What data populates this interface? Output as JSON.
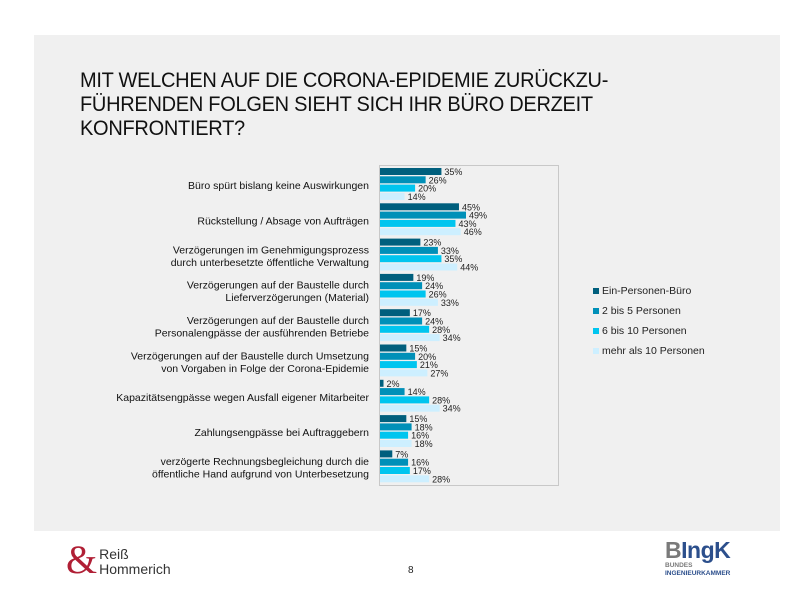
{
  "slide": {
    "title": "MIT WELCHEN AUF DIE CORONA-EPIDEMIE ZURÜCKZU-\nFÜHRENDEN FOLGEN SIEHT SICH IHR BÜRO DERZEIT\nKONFRONTIERT?",
    "page_number": "8"
  },
  "logos": {
    "left_amp": "&",
    "left_line1": "Reiß",
    "left_line2": "Hommerich",
    "right_main_b": "B",
    "right_main_rest": "IngK",
    "right_sub1": "BUNDES",
    "right_sub2": "INGENIEURKAMMER"
  },
  "chart_data": {
    "type": "bar",
    "orientation": "horizontal",
    "title": "MIT WELCHEN AUF DIE CORONA-EPIDEMIE ZURÜCKZUFÜHRENDEN FOLGEN SIEHT SICH IHR BÜRO DERZEIT KONFRONTIERT?",
    "xlabel": "",
    "ylabel": "",
    "xlim": [
      0,
      100
    ],
    "grid": false,
    "legend_position": "right",
    "value_suffix": "%",
    "categories": [
      [
        "Büro spürt bislang keine Auswirkungen"
      ],
      [
        "Rückstellung / Absage von Aufträgen"
      ],
      [
        "Verzögerungen im Genehmigungsprozess",
        "durch unterbesetzte öffentliche Verwaltung"
      ],
      [
        "Verzögerungen auf der Baustelle durch",
        "Lieferverzögerungen (Material)"
      ],
      [
        "Verzögerungen auf der Baustelle durch",
        "Personalengpässe der ausführenden Betriebe"
      ],
      [
        "Verzögerungen auf der Baustelle durch Umsetzung",
        "von Vorgaben in Folge der Corona-Epidemie"
      ],
      [
        "Kapazitätsengpässe wegen Ausfall eigener Mitarbeiter"
      ],
      [
        "Zahlungsengpässe bei Auftraggebern"
      ],
      [
        "verzögerte Rechnungsbegleichung durch die",
        "öffentliche Hand aufgrund von Unterbesetzung"
      ]
    ],
    "series": [
      {
        "name": "Ein-Personen-Büro",
        "color": "#005f7d",
        "values": [
          35,
          45,
          23,
          19,
          17,
          15,
          2,
          15,
          7
        ]
      },
      {
        "name": "2 bis 5 Personen",
        "color": "#0090b8",
        "values": [
          26,
          49,
          33,
          24,
          24,
          20,
          14,
          18,
          16
        ]
      },
      {
        "name": "6 bis 10 Personen",
        "color": "#00c5ef",
        "values": [
          20,
          43,
          35,
          26,
          28,
          21,
          28,
          16,
          17
        ]
      },
      {
        "name": "mehr als 10 Personen",
        "color": "#cdefff",
        "values": [
          14,
          46,
          44,
          33,
          34,
          27,
          34,
          18,
          28
        ]
      }
    ]
  }
}
